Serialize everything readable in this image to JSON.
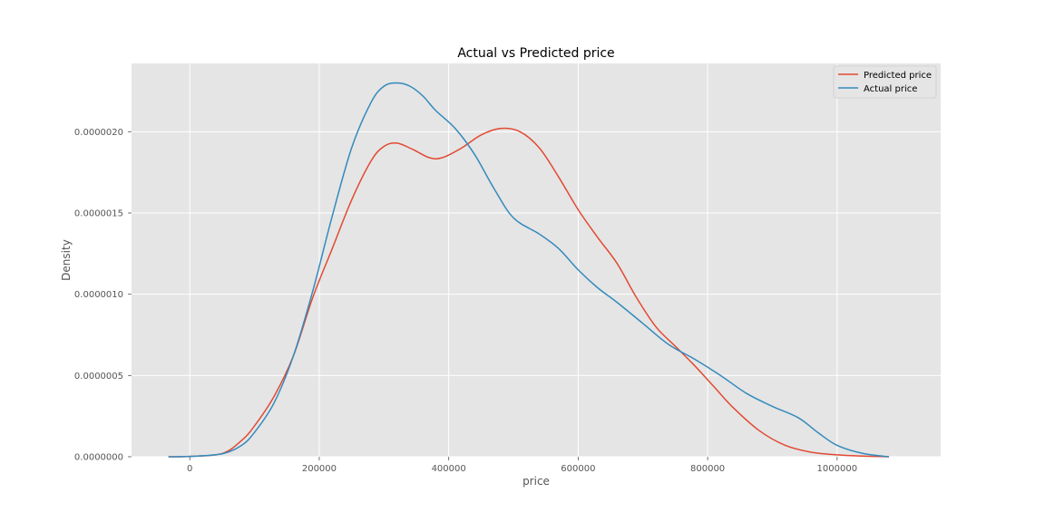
{
  "chart_data": {
    "type": "line",
    "title": "Actual vs Predicted price",
    "xlabel": "price",
    "ylabel": "Density",
    "xlim": [
      -90000,
      1160000
    ],
    "ylim": [
      0,
      2.42e-06
    ],
    "xticks": [
      0,
      200000,
      400000,
      600000,
      800000,
      1000000
    ],
    "xtick_labels": [
      "0",
      "200000",
      "400000",
      "600000",
      "800000",
      "1000000"
    ],
    "yticks": [
      0,
      5e-07,
      1e-06,
      1.5e-06,
      2e-06
    ],
    "ytick_labels": [
      "0.0000000",
      "0.0000005",
      "0.0000010",
      "0.0000015",
      "0.0000020"
    ],
    "grid": true,
    "legend_position": "top-right",
    "background_color": "#e5e5e5",
    "series": [
      {
        "name": "Predicted price",
        "color": "#e24a33",
        "x": [
          -33000,
          0,
          50000,
          80000,
          100000,
          130000,
          160000,
          190000,
          220000,
          250000,
          280000,
          300000,
          320000,
          345000,
          370000,
          390000,
          420000,
          450000,
          480000,
          510000,
          540000,
          570000,
          600000,
          630000,
          660000,
          690000,
          720000,
          750000,
          780000,
          810000,
          840000,
          880000,
          920000,
          960000,
          1000000,
          1040000,
          1080000
        ],
        "y": [
          0,
          2e-09,
          2e-08,
          1e-07,
          1.9e-07,
          3.7e-07,
          6.2e-07,
          9.8e-07,
          1.28e-06,
          1.58e-06,
          1.82e-06,
          1.91e-06,
          1.93e-06,
          1.89e-06,
          1.84e-06,
          1.84e-06,
          1.9e-06,
          1.98e-06,
          2.02e-06,
          2e-06,
          1.9e-06,
          1.72e-06,
          1.52e-06,
          1.35e-06,
          1.19e-06,
          9.8e-07,
          8e-07,
          6.8e-07,
          5.6e-07,
          4.3e-07,
          3e-07,
          1.6e-07,
          7e-08,
          2.8e-08,
          1.2e-08,
          4e-09,
          0
        ]
      },
      {
        "name": "Actual price",
        "color": "#348abd",
        "x": [
          -33000,
          0,
          50000,
          80000,
          100000,
          130000,
          160000,
          190000,
          220000,
          250000,
          280000,
          300000,
          320000,
          340000,
          360000,
          380000,
          410000,
          440000,
          470000,
          500000,
          540000,
          570000,
          600000,
          630000,
          660000,
          700000,
          740000,
          780000,
          820000,
          860000,
          900000,
          940000,
          970000,
          1000000,
          1040000,
          1080000
        ],
        "y": [
          0,
          2e-09,
          1.8e-08,
          7e-08,
          1.5e-07,
          3.3e-07,
          6.2e-07,
          1.02e-06,
          1.48e-06,
          1.9e-06,
          2.18e-06,
          2.28e-06,
          2.3e-06,
          2.28e-06,
          2.22e-06,
          2.13e-06,
          2.02e-06,
          1.86e-06,
          1.65e-06,
          1.47e-06,
          1.37e-06,
          1.28e-06,
          1.15e-06,
          1.04e-06,
          9.5e-07,
          8.2e-07,
          6.9e-07,
          6e-07,
          5e-07,
          3.9e-07,
          3.1e-07,
          2.4e-07,
          1.5e-07,
          7e-08,
          2e-08,
          0
        ]
      }
    ]
  }
}
